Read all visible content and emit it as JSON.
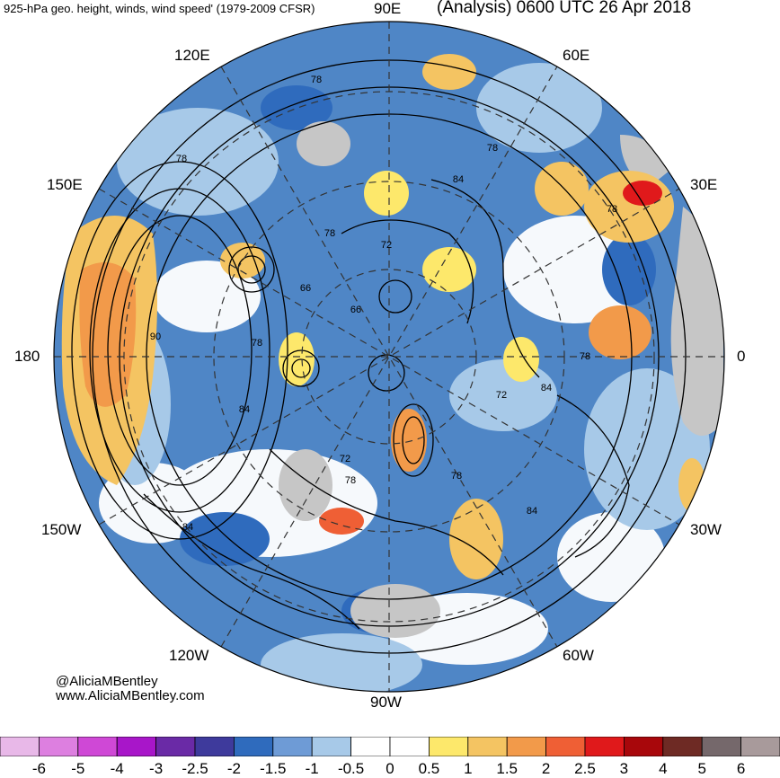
{
  "header": {
    "title_left": "925-hPa geo. height, winds, wind speed' (1979-2009 CFSR)",
    "title_right": "(Analysis) 0600 UTC 26 Apr 2018"
  },
  "longitude_labels": {
    "e90": "90E",
    "e60": "60E",
    "e120": "120E",
    "e150": "150E",
    "e30": "30E",
    "lon180": "180",
    "lon0": "0",
    "w150": "150W",
    "w30": "30W",
    "w120": "120W",
    "w60": "60W",
    "w90": "90W"
  },
  "contour_labels": [
    "78",
    "84",
    "78",
    "78",
    "72",
    "78",
    "66",
    "66",
    "90",
    "78",
    "84",
    "72",
    "84",
    "78",
    "72",
    "78",
    "78",
    "84",
    "84",
    "78"
  ],
  "credits": {
    "handle": "@AliciaMBentley",
    "website": "www.AliciaMBentley.com"
  },
  "colorbar": {
    "colors": [
      "#e8b8e8",
      "#dd7fe0",
      "#cf48d6",
      "#a816c9",
      "#6a2aa6",
      "#3e3a9c",
      "#2f6bbd",
      "#6e9bd6",
      "#a7c9e8",
      "#ffffff",
      "#ffffff",
      "#fde86b",
      "#f4c462",
      "#f29a4a",
      "#ef5f35",
      "#e0191b",
      "#a8070b",
      "#6e2a24",
      "#75686b",
      "#a89a9b"
    ],
    "ticks": [
      "-6",
      "-5",
      "-4",
      "-3",
      "-2.5",
      "-2",
      "-1.5",
      "-1",
      "-0.5",
      "0",
      "0.5",
      "1",
      "1.5",
      "2",
      "2.5",
      "3",
      "4",
      "5",
      "6"
    ]
  }
}
